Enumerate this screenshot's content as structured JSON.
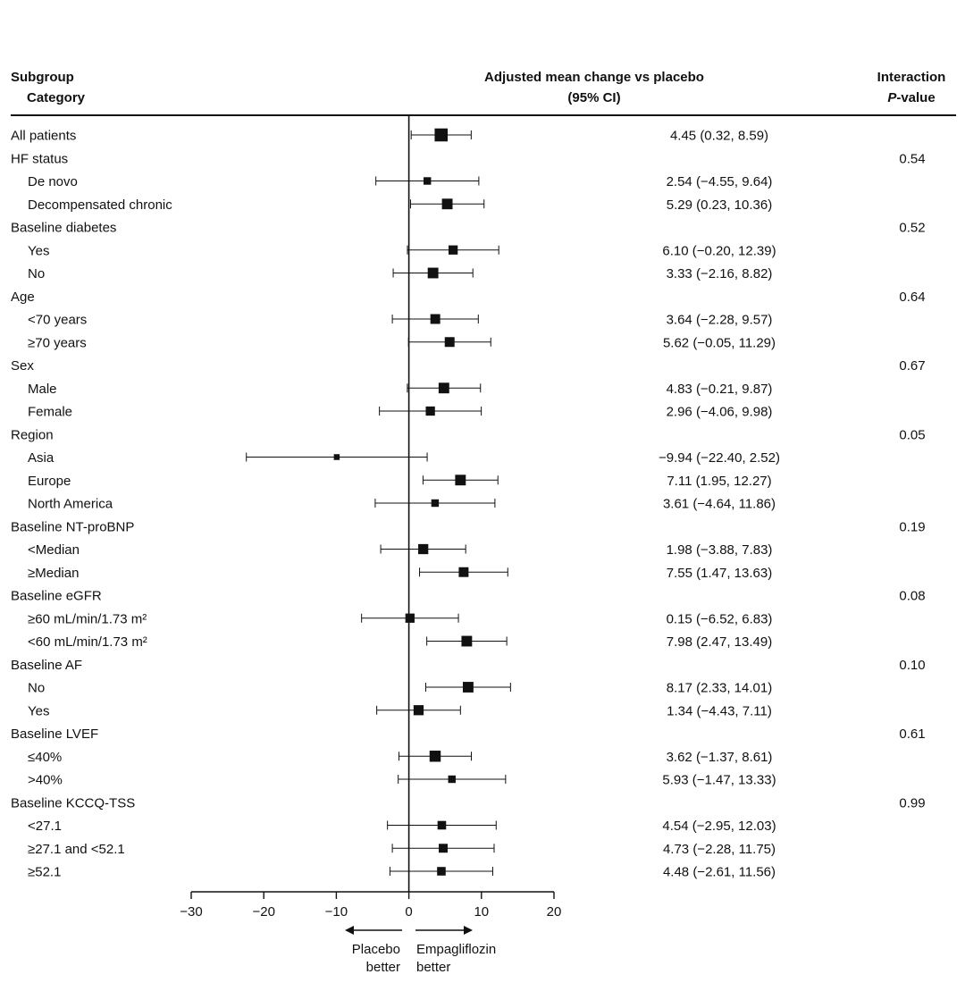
{
  "header": {
    "subgroup": "Subgroup",
    "category": "Category",
    "effect_line1": "Adjusted mean change vs placebo",
    "effect_line2": "(95% CI)",
    "interaction_line1": "Interaction",
    "interaction_p": "P",
    "interaction_value": "-value"
  },
  "footer": {
    "left_label_1": "Placebo",
    "left_label_2": "better",
    "right_label_1": "Empagliflozin",
    "right_label_2": "better"
  },
  "chart_data": {
    "type": "forest",
    "title": "Adjusted mean change vs placebo (95% CI)",
    "xlim": [
      -30,
      20
    ],
    "xticks": [
      -30,
      -20,
      -10,
      0,
      10,
      20
    ],
    "reference_line": 0,
    "rows": [
      {
        "label": "All patients",
        "level": 0,
        "est": 4.45,
        "lo": 0.32,
        "hi": 8.59,
        "size": 3,
        "ci_text": "4.45 (0.32, 8.59)"
      },
      {
        "label": "HF status",
        "level": 0,
        "p": "0.54"
      },
      {
        "label": "De novo",
        "level": 1,
        "est": 2.54,
        "lo": -4.55,
        "hi": 9.64,
        "size": 1,
        "ci_text": "2.54 (−4.55, 9.64)"
      },
      {
        "label": "Decompensated chronic",
        "level": 1,
        "est": 5.29,
        "lo": 0.23,
        "hi": 10.36,
        "size": 2,
        "ci_text": "5.29 (0.23, 10.36)"
      },
      {
        "label": "Baseline diabetes",
        "level": 0,
        "p": "0.52"
      },
      {
        "label": "Yes",
        "level": 1,
        "est": 6.1,
        "lo": -0.2,
        "hi": 12.39,
        "size": 1.5,
        "ci_text": "6.10 (−0.20, 12.39)"
      },
      {
        "label": "No",
        "level": 1,
        "est": 3.33,
        "lo": -2.16,
        "hi": 8.82,
        "size": 2,
        "ci_text": "3.33 (−2.16, 8.82)"
      },
      {
        "label": "Age",
        "level": 0,
        "p": "0.64"
      },
      {
        "label": "<70 years",
        "level": 1,
        "est": 3.64,
        "lo": -2.28,
        "hi": 9.57,
        "size": 1.7,
        "ci_text": "3.64 (−2.28, 9.57)"
      },
      {
        "label": "≥70 years",
        "level": 1,
        "est": 5.62,
        "lo": -0.05,
        "hi": 11.29,
        "size": 1.7,
        "ci_text": "5.62 (−0.05, 11.29)"
      },
      {
        "label": "Sex",
        "level": 0,
        "p": "0.67"
      },
      {
        "label": "Male",
        "level": 1,
        "est": 4.83,
        "lo": -0.21,
        "hi": 9.87,
        "size": 2,
        "ci_text": "4.83 (−0.21, 9.87)"
      },
      {
        "label": "Female",
        "level": 1,
        "est": 2.96,
        "lo": -4.06,
        "hi": 9.98,
        "size": 1.5,
        "ci_text": "2.96 (−4.06, 9.98)"
      },
      {
        "label": "Region",
        "level": 0,
        "p": "0.05"
      },
      {
        "label": "Asia",
        "level": 1,
        "est": -9.94,
        "lo": -22.4,
        "hi": 2.52,
        "size": 0.6,
        "ci_text": "−9.94 (−22.40, 2.52)"
      },
      {
        "label": "Europe",
        "level": 1,
        "est": 7.11,
        "lo": 1.95,
        "hi": 12.27,
        "size": 2,
        "ci_text": "7.11 (1.95, 12.27)"
      },
      {
        "label": "North America",
        "level": 1,
        "est": 3.61,
        "lo": -4.64,
        "hi": 11.86,
        "size": 1,
        "ci_text": "3.61 (−4.64, 11.86)"
      },
      {
        "label": "Baseline NT-proBNP",
        "level": 0,
        "p": "0.19"
      },
      {
        "label": "<Median",
        "level": 1,
        "est": 1.98,
        "lo": -3.88,
        "hi": 7.83,
        "size": 1.8,
        "ci_text": "1.98 (−3.88, 7.83)"
      },
      {
        "label": "≥Median",
        "level": 1,
        "est": 7.55,
        "lo": 1.47,
        "hi": 13.63,
        "size": 1.7,
        "ci_text": "7.55 (1.47, 13.63)"
      },
      {
        "label": "Baseline eGFR",
        "level": 0,
        "p": "0.08"
      },
      {
        "label": "≥60 mL/min/1.73 m²",
        "level": 1,
        "est": 0.15,
        "lo": -6.52,
        "hi": 6.83,
        "size": 1.5,
        "ci_text": "0.15 (−6.52, 6.83)"
      },
      {
        "label": "<60 mL/min/1.73 m²",
        "level": 1,
        "est": 7.98,
        "lo": 2.47,
        "hi": 13.49,
        "size": 2,
        "ci_text": "7.98 (2.47, 13.49)"
      },
      {
        "label": "Baseline AF",
        "level": 0,
        "p": "0.10"
      },
      {
        "label": "No",
        "level": 1,
        "est": 8.17,
        "lo": 2.33,
        "hi": 14.01,
        "size": 2,
        "ci_text": "8.17 (2.33, 14.01)"
      },
      {
        "label": "Yes",
        "level": 1,
        "est": 1.34,
        "lo": -4.43,
        "hi": 7.11,
        "size": 1.8,
        "ci_text": "1.34 (−4.43, 7.11)"
      },
      {
        "label": "Baseline LVEF",
        "level": 0,
        "p": "0.61"
      },
      {
        "label": "≤40%",
        "level": 1,
        "est": 3.62,
        "lo": -1.37,
        "hi": 8.61,
        "size": 2.2,
        "ci_text": "3.62 (−1.37, 8.61)"
      },
      {
        "label": ">40%",
        "level": 1,
        "est": 5.93,
        "lo": -1.47,
        "hi": 13.33,
        "size": 1,
        "ci_text": "5.93 (−1.47, 13.33)"
      },
      {
        "label": "Baseline KCCQ-TSS",
        "level": 0,
        "p": "0.99"
      },
      {
        "label": "<27.1",
        "level": 1,
        "est": 4.54,
        "lo": -2.95,
        "hi": 12.03,
        "size": 1.3,
        "ci_text": "4.54 (−2.95, 12.03)"
      },
      {
        "label": "≥27.1 and <52.1",
        "level": 1,
        "est": 4.73,
        "lo": -2.28,
        "hi": 11.75,
        "size": 1.4,
        "ci_text": "4.73 (−2.28, 11.75)"
      },
      {
        "label": "≥52.1",
        "level": 1,
        "est": 4.48,
        "lo": -2.61,
        "hi": 11.56,
        "size": 1.3,
        "ci_text": "4.48 (−2.61, 11.56)"
      }
    ]
  }
}
